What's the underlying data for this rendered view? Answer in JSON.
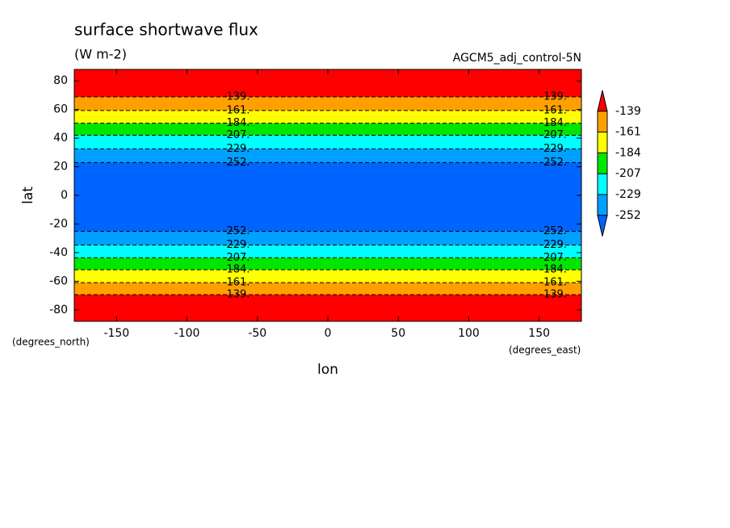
{
  "chart_data": {
    "type": "contour",
    "title": "surface shortwave flux",
    "subtitle": "(W m-2)",
    "annotation": "AGCM5_adj_control-5N",
    "xlabel": "lon",
    "ylabel": "lat",
    "xunits": "(degrees_east)",
    "yunits": "(degrees_north)",
    "xlim": [
      -180,
      180
    ],
    "ylim": [
      -88,
      88
    ],
    "xticks": [
      -150,
      -100,
      -50,
      0,
      50,
      100,
      150
    ],
    "yticks": [
      -80,
      -60,
      -40,
      -20,
      0,
      20,
      40,
      60,
      80
    ],
    "levels": [
      -139,
      -161,
      -184,
      -207,
      -229,
      -252
    ],
    "colors": [
      "#ff0000",
      "#ffa000",
      "#ffff00",
      "#00e600",
      "#00ffff",
      "#00a0ff",
      "#0064ff"
    ],
    "contours": {
      "values": [
        -139,
        -161,
        -184,
        -207,
        -229,
        -252,
        -252,
        -229,
        -207,
        -184,
        -161,
        -139
      ],
      "value_labels": [
        "-139.",
        "-161.",
        "-184.",
        "-207.",
        "-229.",
        "-252.",
        "-252.",
        "-229.",
        "-207.",
        "-184.",
        "-161.",
        "-139."
      ],
      "lat": [
        68.8,
        59.3,
        50.4,
        42,
        32.5,
        22.9,
        -25.2,
        -34.7,
        -43.6,
        -52,
        -61,
        -69.4
      ]
    }
  }
}
